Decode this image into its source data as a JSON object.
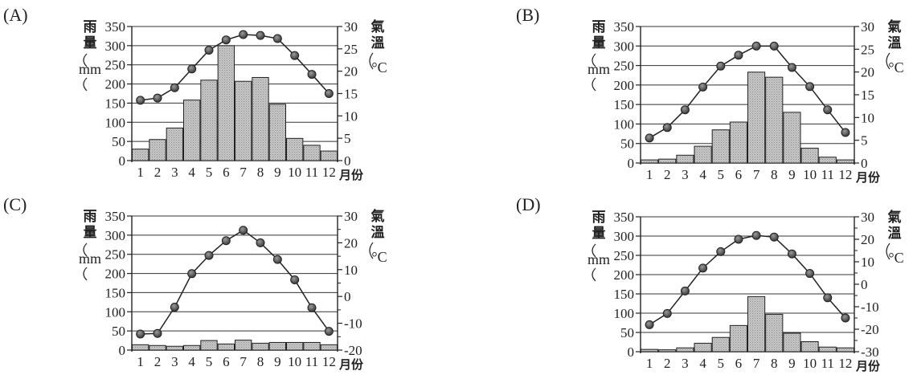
{
  "chart_data": [
    {
      "type": "bar+line",
      "panel_label": "(A)",
      "months": [
        "1",
        "2",
        "3",
        "4",
        "5",
        "6",
        "7",
        "8",
        "9",
        "10",
        "11",
        "12"
      ],
      "month_axis_label": "月份",
      "rain_label_chars": [
        "雨",
        "量"
      ],
      "rain_unit": "mm",
      "temp_label_chars": [
        "氣",
        "溫"
      ],
      "temp_unit": "°C",
      "rain_ylim": [
        0,
        350
      ],
      "rain_ticks": [
        "0",
        "50",
        "100",
        "150",
        "200",
        "250",
        "300",
        "350"
      ],
      "temp_ylim": [
        0,
        30
      ],
      "temp_ticks": [
        "0",
        "5",
        "10",
        "15",
        "20",
        "25",
        "30"
      ],
      "rainfall_mm": [
        30,
        55,
        85,
        158,
        210,
        300,
        207,
        217,
        147,
        58,
        40,
        25
      ],
      "temperature_c": [
        13.5,
        14,
        16.3,
        20.5,
        24.7,
        27,
        28.2,
        28,
        27.3,
        23.5,
        19.3,
        15
      ]
    },
    {
      "type": "bar+line",
      "panel_label": "(B)",
      "months": [
        "1",
        "2",
        "3",
        "4",
        "5",
        "6",
        "7",
        "8",
        "9",
        "10",
        "11",
        "12"
      ],
      "month_axis_label": "月份",
      "rain_label_chars": [
        "雨",
        "量"
      ],
      "rain_unit": "mm",
      "temp_label_chars": [
        "氣",
        "溫"
      ],
      "temp_unit": "°C",
      "rain_ylim": [
        0,
        350
      ],
      "rain_ticks": [
        "0",
        "50",
        "100",
        "150",
        "200",
        "250",
        "300",
        "350"
      ],
      "temp_ylim": [
        0,
        30
      ],
      "temp_ticks": [
        "0",
        "5",
        "10",
        "15",
        "20",
        "25",
        "30"
      ],
      "rainfall_mm": [
        8,
        10,
        20,
        43,
        85,
        105,
        233,
        220,
        130,
        38,
        15,
        8
      ],
      "temperature_c": [
        5.5,
        7.8,
        11.7,
        16.7,
        21.3,
        23.7,
        25.7,
        25.7,
        21,
        16.8,
        11.7,
        6.7
      ]
    },
    {
      "type": "bar+line",
      "panel_label": "(C)",
      "months": [
        "1",
        "2",
        "3",
        "4",
        "5",
        "6",
        "7",
        "8",
        "9",
        "10",
        "11",
        "12"
      ],
      "month_axis_label": "月份",
      "rain_label_chars": [
        "雨",
        "量"
      ],
      "rain_unit": "mm",
      "temp_label_chars": [
        "氣",
        "溫"
      ],
      "temp_unit": "°C",
      "rain_ylim": [
        0,
        350
      ],
      "rain_ticks": [
        "0",
        "50",
        "100",
        "150",
        "200",
        "250",
        "300",
        "350"
      ],
      "temp_ylim": [
        -20,
        30
      ],
      "temp_ticks": [
        "-20",
        "-10",
        "0",
        "10",
        "20",
        "30"
      ],
      "temp_minor_ticks": [
        -15,
        -5,
        5,
        15,
        25
      ],
      "rainfall_mm": [
        14,
        12,
        10,
        12,
        25,
        16,
        26,
        18,
        20,
        20,
        20,
        14
      ],
      "temperature_c": [
        -14,
        -13.8,
        -4,
        8.5,
        15.3,
        20.8,
        24.7,
        20,
        13.8,
        6.2,
        -4.2,
        -13
      ]
    },
    {
      "type": "bar+line",
      "panel_label": "(D)",
      "months": [
        "1",
        "2",
        "3",
        "4",
        "5",
        "6",
        "7",
        "8",
        "9",
        "10",
        "11",
        "12"
      ],
      "month_axis_label": "月份",
      "rain_label_chars": [
        "雨",
        "量"
      ],
      "rain_unit": "mm",
      "temp_label_chars": [
        "氣",
        "溫"
      ],
      "temp_unit": "°C",
      "rain_ylim": [
        0,
        350
      ],
      "rain_ticks": [
        "0",
        "50",
        "100",
        "150",
        "200",
        "250",
        "300",
        "350"
      ],
      "temp_ylim": [
        -30,
        30
      ],
      "temp_ticks": [
        "-30",
        "-20",
        "-10",
        "0",
        "10",
        "20",
        "30"
      ],
      "temp_minor_ticks": [
        -25,
        -15,
        -5,
        5,
        15,
        25
      ],
      "rainfall_mm": [
        6,
        5,
        10,
        22,
        37,
        68,
        143,
        97,
        48,
        26,
        12,
        10
      ],
      "temperature_c": [
        -18,
        -13,
        -3,
        7.2,
        14.5,
        20,
        21.7,
        21,
        13.5,
        4.8,
        -6,
        -15
      ]
    }
  ]
}
